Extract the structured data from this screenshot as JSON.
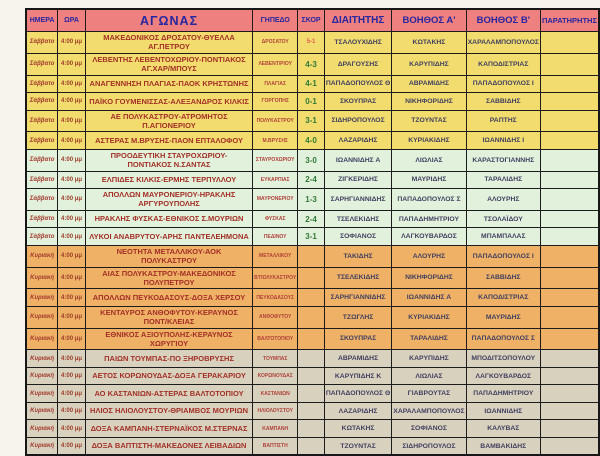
{
  "page": {
    "background": "#f7f4ec"
  },
  "colors": {
    "header_bg": "#ef8080",
    "header_text": "#2626a0",
    "group_yellow": "#f2dc6e",
    "group_green": "#e2f1dc",
    "group_orange": "#efb166",
    "group_gray": "#d8d1bd",
    "match_text": "#a33027",
    "official_text": "#403f60",
    "score_green": "#317a36",
    "score_red": "#e4574f",
    "grid_border": "#1c1c1c"
  },
  "table": {
    "columns": [
      {
        "key": "day",
        "label": "ΗΜΕΡΑ"
      },
      {
        "key": "time",
        "label": "ΩΡΑ"
      },
      {
        "key": "match",
        "label": "ΑΓΩΝΑΣ"
      },
      {
        "key": "venue",
        "label": "ΓΗΠΕΔΟ"
      },
      {
        "key": "score",
        "label": "ΣΚΟΡ"
      },
      {
        "key": "referee",
        "label": "ΔΙΑΙΤΗΤΗΣ"
      },
      {
        "key": "assistant_a",
        "label": "ΒΟΗΘΟΣ Α'"
      },
      {
        "key": "assistant_b",
        "label": "ΒΟΗΘΟΣ Β'"
      },
      {
        "key": "observer",
        "label": "ΠΑΡΑΤΗΡΗΤΗΣ"
      }
    ],
    "rows": [
      {
        "day": "Σάββατο",
        "time": "4:00 μμ",
        "match": "ΜΑΚΕΔΟΝΙΚΟΣ ΔΡΟΣΑΤΟΥ-ΘΥΕΛΛΑ ΑΓ.ΠΕΤΡΟΥ",
        "venue": "ΔΡΟΣΑΤΟΥ",
        "score": "5-1",
        "score_color": "red",
        "referee": "ΤΣΑΛΟΥΧΙΔΗΣ",
        "assistant_a": "ΚΩΤΑΚΗΣ",
        "assistant_b": "ΧΑΡΑΛΑΜΠΟΠΟΥΛΟΣ",
        "observer": "",
        "group": "yellow"
      },
      {
        "day": "Σάββατο",
        "time": "4:00 μμ",
        "match": "ΛΕΒΕΝΤΗΣ ΛΕΒΕΝΤΟΧΩΡΙΟΥ-ΠΟΝΤΙΑΚΟΣ ΑΓ.ΧΑΡ/ΜΠΟΥΣ",
        "venue": "ΛΕΒΕΝΤ/ΡΙΟΥ",
        "score": "4-3",
        "score_color": "green",
        "referee": "ΔΡΑΓΟΥΣΗΣ",
        "assistant_a": "ΚΑΡΥΠΙΔΗΣ",
        "assistant_b": "ΚΑΠΟΔΙΣΤΡΙΑΣ",
        "observer": "",
        "group": "yellow"
      },
      {
        "day": "Σάββατο",
        "time": "4:00 μμ",
        "match": "ΑΝΑΓΕΝΝΗΣΗ ΠΛΑΓΙΑΣ-ΠΑΟΚ ΚΡΗΣΤΩΝΗΣ",
        "venue": "ΠΛΑΓΙΑΣ",
        "score": "4-1",
        "score_color": "green",
        "referee": "ΠΑΠΑΔΟΠΟΥΛΟΣ Θ",
        "assistant_a": "ΑΒΡΑΜΙΔΗΣ",
        "assistant_b": "ΠΑΠΑΔΟΠΟΥΛΟΣ Ι",
        "observer": "",
        "group": "yellow"
      },
      {
        "day": "Σάββατο",
        "time": "4:00 μμ",
        "match": "ΠΑΪΚΟ ΓΟΥΜΕΝΙΣΣΑΣ-ΑΛΕΞΑΝΔΡΟΣ ΚΙΛΚΙΣ",
        "venue": "ΓΟΡΓΟΠΗΣ",
        "score": "0-1",
        "score_color": "green",
        "referee": "ΣΚΟΥΠΡΑΣ",
        "assistant_a": "ΝΙΚΗΦΟΡΙΔΗΣ",
        "assistant_b": "ΣΑΒΒΙΔΗΣ",
        "observer": "",
        "group": "yellow"
      },
      {
        "day": "Σάββατο",
        "time": "4:00 μμ",
        "match": "ΑΕ ΠΟΛΥΚΑΣΤΡΟΥ-ΑΤΡΟΜΗΤΟΣ Π.ΑΓΙΟΝΕΡΙΟΥ",
        "venue": "ΠΟΛΥΚΑΣΤΡΟΥ",
        "score": "3-1",
        "score_color": "green",
        "referee": "ΣΙΔΗΡΟΠΟΥΛΟΣ",
        "assistant_a": "ΤΖΟΥΝΤΑΣ",
        "assistant_b": "ΡΑΠΤΗΣ",
        "observer": "",
        "group": "yellow"
      },
      {
        "day": "Σάββατο",
        "time": "4:00 μμ",
        "match": "ΑΣΤΕΡΑΣ Μ.ΒΡΥΣΗΣ-ΠΑΟΝ ΕΠΤΑΛΟΦΟΥ",
        "venue": "Μ.ΒΡΥΣΗΣ",
        "score": "4-0",
        "score_color": "green",
        "referee": "ΛΑΖΑΡΙΔΗΣ",
        "assistant_a": "ΚΥΡΙΑΚΙΔΗΣ",
        "assistant_b": "ΙΩΑΝΝΙΔΗΣ Ι",
        "observer": "",
        "group": "yellow"
      },
      {
        "day": "Σάββατο",
        "time": "4:00 μμ",
        "match": "ΠΡΟΟΔΕΥΤΙΚΗ ΣΤΑΥΡΟΧΩΡΙΟΥ-ΠΟΝΤΙΑΚΟΣ Ν.ΣΑΝΤΑΣ",
        "venue": "ΣΤΑΥΡΟΧΩΡΙΟΥ",
        "score": "3-0",
        "score_color": "green",
        "referee": "ΙΩΑΝΝΙΔΗΣ Α",
        "assistant_a": "ΛΙΩΛΙΑΣ",
        "assistant_b": "ΚΑΡΑΣΤΟΓΙΑΝΝΗΣ",
        "observer": "",
        "group": "green"
      },
      {
        "day": "Σάββατο",
        "time": "4:00 μμ",
        "match": "ΕΛΠΙΔΕΣ ΚΙΛΚΙΣ-ΕΡΜΗΣ ΤΕΡΠΥΛΛΟΥ",
        "venue": "ΕΥΚΑΡΠΙΑΣ",
        "score": "2-4",
        "score_color": "green",
        "referee": "ΖΙΓΚΕΡΙΔΗΣ",
        "assistant_a": "ΜΑΥΡΙΔΗΣ",
        "assistant_b": "ΤΑΡΑΛΙΔΗΣ",
        "observer": "",
        "group": "green"
      },
      {
        "day": "Σάββατο",
        "time": "4:00 μμ",
        "match": "ΑΠΟΛΛΩΝ ΜΑΥΡΟΝΕΡΙΟΥ-ΗΡΑΚΛΗΣ ΑΡΓΥΡΟΥΠΟΛΗΣ",
        "venue": "ΜΑΥΡΟΝΕΡΙΟΥ",
        "score": "1-3",
        "score_color": "green",
        "referee": "ΣΑΡΗΓΙΑΝΝΙΔΗΣ",
        "assistant_a": "ΠΑΠΑΔΟΠΟΥΛΟΣ Σ",
        "assistant_b": "ΑΛΟΥΡΗΣ",
        "observer": "",
        "group": "green"
      },
      {
        "day": "Σάββατο",
        "time": "4:00 μμ",
        "match": "ΗΡΑΚΛΗΣ ΦΥΣΚΑΣ-ΕΘΝΙΚΟΣ Σ.ΜΟΥΡΙΩΝ",
        "venue": "ΦΥΣΚΑΣ",
        "score": "2-4",
        "score_color": "green",
        "referee": "ΤΣΕΛΕΚΙΔΗΣ",
        "assistant_a": "ΠΑΠΑΔΗΜΗΤΡΙΟΥ",
        "assistant_b": "ΤΣΟΛΑΪΔΟΥ",
        "observer": "",
        "group": "green"
      },
      {
        "day": "Σάββατο",
        "time": "4:00 μμ",
        "match": "ΛΥΚΟΙ ΑΝΑΒΡΥΤΟΥ-ΑΡΗΣ ΠΑΝΤΕΛΕΗΜΟΝΑ",
        "venue": "ΠΕΔΙΝΟΥ",
        "score": "3-1",
        "score_color": "green",
        "referee": "ΣΟΦΙΑΝΟΣ",
        "assistant_a": "ΛΑΓΚΟΥΒΑΡΔΟΣ",
        "assistant_b": "ΜΠΑΜΠΑΛΑΣ",
        "observer": "",
        "group": "green"
      },
      {
        "day": "Κυριακή",
        "time": "4:00 μμ",
        "match": "ΝΕΟΤΗΤΑ ΜΕΤΑΛΛΙΚΟΥ-ΑΟΚ ΠΟΛΥΚΑΣΤΡΟΥ",
        "venue": "ΜΕΤΑΛΛΙΚΟΥ",
        "score": "",
        "score_color": "green",
        "referee": "ΤΑΚΙΔΗΣ",
        "assistant_a": "ΑΛΟΥΡΗΣ",
        "assistant_b": "ΠΑΠΑΔΟΠΟΥΛΟΣ Ι",
        "observer": "",
        "group": "orange"
      },
      {
        "day": "Κυριακή",
        "time": "4:00 μμ",
        "match": "ΑΙΑΣ ΠΟΛΥΚΑΣΤΡΟΥ-ΜΑΚΕΔΟΝΙΚΟΣ ΠΟΛΥΠΕΤΡΟΥ",
        "venue": "Β'ΠΟΛΥΚΑΣΤΡΟΥ",
        "score": "",
        "score_color": "green",
        "referee": "ΤΣΕΛΕΚΙΔΗΣ",
        "assistant_a": "ΝΙΚΗΦΟΡΙΔΗΣ",
        "assistant_b": "ΣΑΒΒΙΔΗΣ",
        "observer": "",
        "group": "orange"
      },
      {
        "day": "Κυριακή",
        "time": "4:00 μμ",
        "match": "ΑΠΟΛΛΩΝ ΠΕΥΚΟΔΑΣΟΥΣ-ΔΟΞΑ ΧΕΡΣΟΥ",
        "venue": "ΠΕΥΚΟΔΑΣΟΥΣ",
        "score": "",
        "score_color": "green",
        "referee": "ΣΑΡΗΓΙΑΝΝΙΔΗΣ",
        "assistant_a": "ΙΩΑΝΝΙΔΗΣ Α",
        "assistant_b": "ΚΑΠΟΔΙΣΤΡΙΑΣ",
        "observer": "",
        "group": "orange"
      },
      {
        "day": "Κυριακή",
        "time": "4:00 μμ",
        "match": "ΚΕΝΤΑΥΡΟΣ ΑΝΘΟΦΥΤΟΥ-ΚΕΡΑΥΝΟΣ ΠΟΝΤ/ΚΛΕΙΑΣ",
        "venue": "ΑΝΘΟΦΥΤΟΥ",
        "score": "",
        "score_color": "green",
        "referee": "ΤΖΩΓΛΗΣ",
        "assistant_a": "ΚΥΡΙΑΚΙΔΗΣ",
        "assistant_b": "ΜΑΥΡΙΔΗΣ",
        "observer": "",
        "group": "orange"
      },
      {
        "day": "Κυριακή",
        "time": "4:00 μμ",
        "match": "ΕΘΝΙΚΟΣ ΑΞΙΟΥΠΟΛΗΣ-ΚΕΡΑΥΝΟΣ ΧΩΡΥΓΙΟΥ",
        "venue": "ΒΑΛΤΟΤΟΠΙΟΥ",
        "score": "",
        "score_color": "green",
        "referee": "ΣΚΟΥΠΡΑΣ",
        "assistant_a": "ΤΑΡΑΛΙΔΗΣ",
        "assistant_b": "ΠΑΠΑΔΟΠΟΥΛΟΣ Σ",
        "observer": "",
        "group": "orange"
      },
      {
        "day": "Κυριακή",
        "time": "4:00 μμ",
        "match": "ΠΑΙΩΝ ΤΟΥΜΠΑΣ-ΠΟ ΞΗΡΟΒΡΥΣΗΣ",
        "venue": "ΤΟΥΜΠΑΣ",
        "score": "",
        "score_color": "green",
        "referee": "ΑΒΡΑΜΙΔΗΣ",
        "assistant_a": "ΚΑΡΥΠΙΔΗΣ",
        "assistant_b": "ΜΠΟΔΙΤΣΟΠΟΥΛΟΥ",
        "observer": "",
        "group": "gray"
      },
      {
        "day": "Κυριακή",
        "time": "4:00 μμ",
        "match": "ΑΕΤΟΣ ΚΟΡΩΝΟΥΔΑΣ-ΔΟΞΑ ΓΕΡΑΚΑΡΙΟΥ",
        "venue": "ΚΟΡΩΝΟΥΔΑΣ",
        "score": "",
        "score_color": "green",
        "referee": "ΚΑΡΥΠΙΔΗΣ Κ",
        "assistant_a": "ΛΙΩΛΙΑΣ",
        "assistant_b": "ΛΑΓΚΟΥΒΑΡΔΟΣ",
        "observer": "",
        "group": "gray"
      },
      {
        "day": "Κυριακή",
        "time": "4:00 μμ",
        "match": "ΑΟ ΚΑΣΤΑΝΙΩΝ-ΑΣΤΕΡΑΣ ΒΑΛΤΟΤΟΠΙΟΥ",
        "venue": "ΚΑΣΤΑΝΙΩΝ",
        "score": "",
        "score_color": "green",
        "referee": "ΠΑΠΑΔΟΠΟΥΛΟΣ Θ",
        "assistant_a": "ΓΙΑΒΡΟΥΤΑΣ",
        "assistant_b": "ΠΑΠΑΔΗΜΗΤΡΙΟΥ",
        "observer": "",
        "group": "gray"
      },
      {
        "day": "Κυριακή",
        "time": "4:00 μμ",
        "match": "ΗΛΙΟΣ ΗΛΙΟΛΟΥΣΤΟΥ-ΘΡΙΑΜΒΟΣ ΜΟΥΡΙΩΝ",
        "venue": "ΗΛΙΟΛΟΥΣΤΟΥ",
        "score": "",
        "score_color": "green",
        "referee": "ΛΑΖΑΡΙΔΗΣ",
        "assistant_a": "ΧΑΡΑΛΑΜΠΟΠΟΥΛΟΣ",
        "assistant_b": "ΙΩΑΝΝΙΔΗΣ",
        "observer": "",
        "group": "gray"
      },
      {
        "day": "Κυριακή",
        "time": "4:00 μμ",
        "match": "ΔΟΞΑ ΚΑΜΠΑΝΗ-ΣΤΕΡΝΑΪΚΟΣ Μ.ΣΤΕΡΝΑΣ",
        "venue": "ΚΑΜΠΑΝΗ",
        "score": "",
        "score_color": "green",
        "referee": "ΚΩΤΑΚΗΣ",
        "assistant_a": "ΣΟΦΙΑΝΟΣ",
        "assistant_b": "ΚΑΛΥΒΑΣ",
        "observer": "",
        "group": "gray"
      },
      {
        "day": "Κυριακή",
        "time": "4:00 μμ",
        "match": "ΔΟΞΑ ΒΑΠΤΙΣΤΗ-ΜΑΚΕΔΟΝΕΣ ΛΕΙΒΑΔΙΩΝ",
        "venue": "ΒΑΠΤΙΣΤΗ",
        "score": "",
        "score_color": "green",
        "referee": "ΤΖΟΥΝΤΑΣ",
        "assistant_a": "ΣΙΔΗΡΟΠΟΥΛΟΣ",
        "assistant_b": "ΒΑΜΒΑΚΙΔΗΣ",
        "observer": "",
        "group": "gray"
      }
    ]
  }
}
